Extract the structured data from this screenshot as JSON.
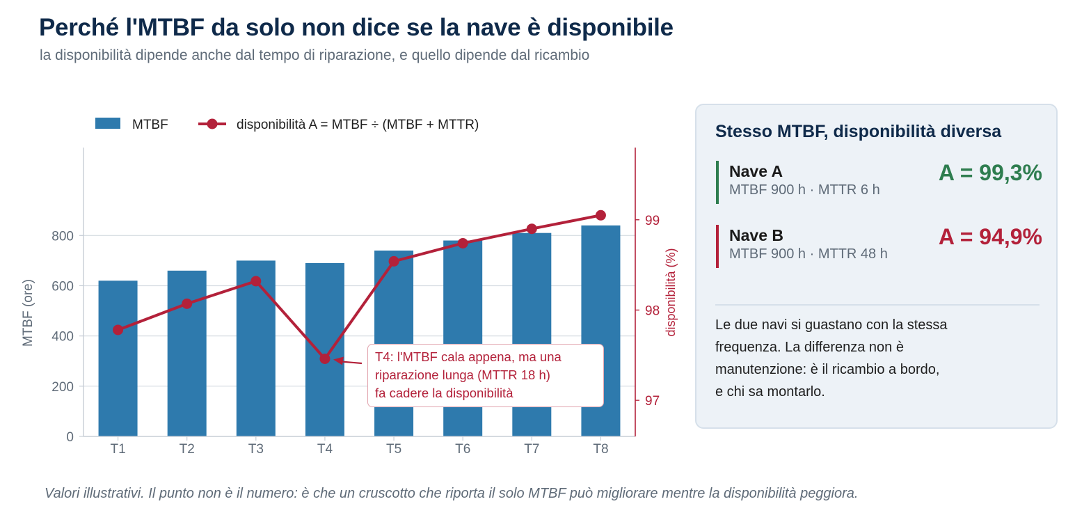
{
  "title": "Perché l'MTBF da solo non dice se la nave è disponibile",
  "subtitle": "la disponibilità dipende anche dal tempo di riparazione, e quello dipende dal ricambio",
  "chart_data": {
    "type": "bar",
    "categories": [
      "T1",
      "T2",
      "T3",
      "T4",
      "T5",
      "T6",
      "T7",
      "T8"
    ],
    "series": [
      {
        "name": "MTBF",
        "type": "bar",
        "axis": "left",
        "values": [
          620,
          660,
          700,
          690,
          740,
          780,
          810,
          840
        ]
      },
      {
        "name": "disponibilità A = MTBF ÷ (MTBF + MTTR)",
        "type": "line",
        "axis": "right",
        "values": [
          97.78,
          98.07,
          98.32,
          97.46,
          98.54,
          98.74,
          98.9,
          99.05
        ]
      }
    ],
    "ylabel": "MTBF (ore)",
    "ylabel_right": "disponibilità (%)",
    "ylim": [
      0,
      1150
    ],
    "yticks": [
      0,
      200,
      400,
      600,
      800
    ],
    "ylim_right": [
      96.6,
      99.8
    ],
    "yticks_right": [
      97,
      98,
      99
    ],
    "legend_position": "top-left",
    "grid": "horizontal",
    "annotation": {
      "category": "T4",
      "lines": [
        "T4: l'MTBF cala appena, ma una",
        "riparazione lunga (MTTR 18 h)",
        "fa cadere la disponibilità"
      ]
    }
  },
  "panel": {
    "title": "Stesso MTBF, disponibilità diversa",
    "ship_a": {
      "name": "Nave A",
      "meta": "MTBF 900 h · MTTR 6 h",
      "value": "A = 99,3%"
    },
    "ship_b": {
      "name": "Nave B",
      "meta": "MTBF 900 h · MTTR 48 h",
      "value": "A = 94,9%"
    },
    "note": [
      "Le due navi si guastano con la stessa",
      "frequenza. La differenza non è",
      "manutenzione: è il ricambio a bordo,",
      "e chi sa montarlo."
    ]
  },
  "footnote": "Valori illustrativi. Il punto non è il numero: è che un cruscotto che riporta il solo MTBF può migliorare mentre la disponibilità peggiora.",
  "colors": {
    "bar": "#2e7aad",
    "line": "#b3213a",
    "good": "#2e7d4f",
    "bad": "#b3213a",
    "title": "#0f2a4a"
  }
}
